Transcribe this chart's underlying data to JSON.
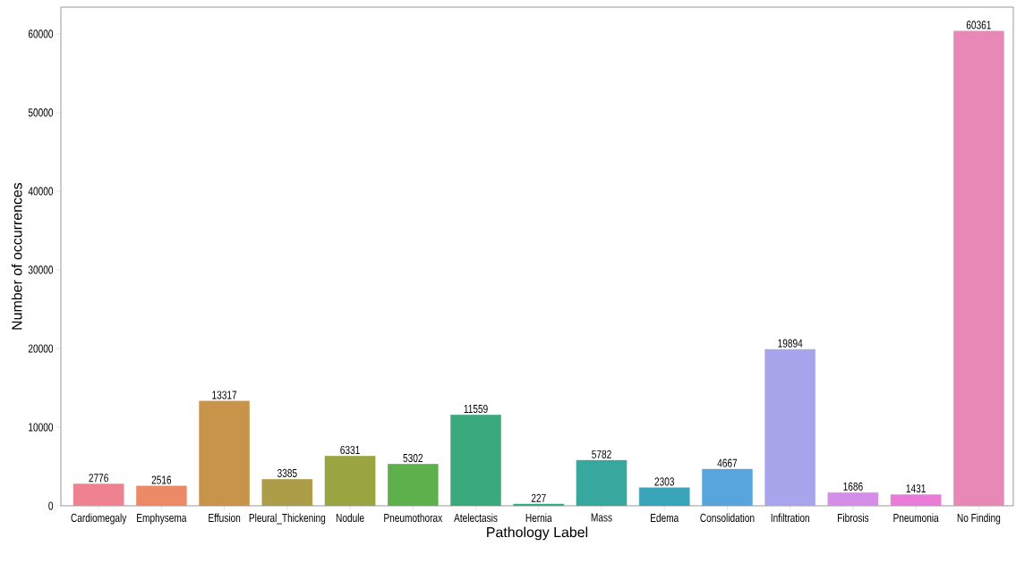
{
  "chart_data": {
    "type": "bar",
    "xlabel": "Pathology Label",
    "ylabel": "Number of occurrences",
    "categories": [
      "Cardiomegaly",
      "Emphysema",
      "Effusion",
      "Pleural_Thickening",
      "Nodule",
      "Pneumothorax",
      "Atelectasis",
      "Hernia",
      "Mass",
      "Edema",
      "Consolidation",
      "Infiltration",
      "Fibrosis",
      "Pneumonia",
      "No Finding"
    ],
    "values": [
      2776,
      2516,
      13317,
      3385,
      6331,
      5302,
      11559,
      227,
      5782,
      2303,
      4667,
      19894,
      1686,
      1431,
      60361
    ],
    "colors": [
      "#ef8290",
      "#ec8a68",
      "#c8944a",
      "#ae9d48",
      "#9aa440",
      "#5eb04c",
      "#3aa97e",
      "#36a98c",
      "#38a89e",
      "#3ba5b8",
      "#58a5de",
      "#a9a5ec",
      "#d58ee8",
      "#e97cd6",
      "#e888b6"
    ],
    "ylim": [
      0,
      63400
    ],
    "yticks": [
      0,
      10000,
      20000,
      30000,
      40000,
      50000,
      60000
    ],
    "data_labels": true,
    "grid": false
  }
}
